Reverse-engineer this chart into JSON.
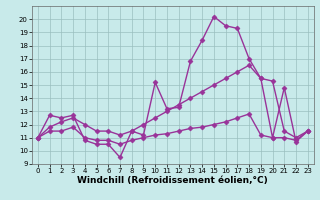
{
  "background_color": "#c8eaea",
  "line_color": "#993399",
  "marker": "D",
  "markersize": 2.5,
  "linewidth": 1.0,
  "xlabel": "Windchill (Refroidissement éolien,°C)",
  "xlabel_fontsize": 6.5,
  "xlabel_bold": true,
  "ylim": [
    9,
    21
  ],
  "xlim": [
    -0.5,
    23.5
  ],
  "yticks": [
    9,
    10,
    11,
    12,
    13,
    14,
    15,
    16,
    17,
    18,
    19,
    20
  ],
  "xticks": [
    0,
    1,
    2,
    3,
    4,
    5,
    6,
    7,
    8,
    9,
    10,
    11,
    12,
    13,
    14,
    15,
    16,
    17,
    18,
    19,
    20,
    21,
    22,
    23
  ],
  "grid_color": "#9bbfbf",
  "series": [
    {
      "x": [
        0,
        1,
        2,
        3,
        4,
        5,
        6,
        7,
        8,
        9,
        10,
        11,
        12,
        13,
        14,
        15,
        16,
        17,
        18,
        19,
        20,
        21,
        22,
        23
      ],
      "y": [
        11.0,
        12.7,
        12.5,
        12.7,
        10.8,
        10.5,
        10.5,
        9.5,
        11.5,
        11.2,
        15.2,
        13.2,
        13.3,
        16.8,
        18.4,
        20.2,
        19.5,
        19.3,
        17.0,
        15.5,
        11.0,
        14.8,
        10.7,
        11.5
      ]
    },
    {
      "x": [
        0,
        1,
        2,
        3,
        4,
        5,
        6,
        7,
        8,
        9,
        10,
        11,
        12,
        13,
        14,
        15,
        16,
        17,
        18,
        19,
        20,
        21,
        22,
        23
      ],
      "y": [
        11.0,
        11.8,
        12.2,
        12.5,
        12.0,
        11.5,
        11.5,
        11.2,
        11.5,
        12.0,
        12.5,
        13.0,
        13.5,
        14.0,
        14.5,
        15.0,
        15.5,
        16.0,
        16.5,
        15.5,
        15.3,
        11.5,
        11.0,
        11.5
      ]
    },
    {
      "x": [
        0,
        1,
        2,
        3,
        4,
        5,
        6,
        7,
        8,
        9,
        10,
        11,
        12,
        13,
        14,
        15,
        16,
        17,
        18,
        19,
        20,
        21,
        22,
        23
      ],
      "y": [
        11.0,
        11.5,
        11.5,
        11.8,
        11.0,
        10.8,
        10.8,
        10.5,
        10.8,
        11.0,
        11.2,
        11.3,
        11.5,
        11.7,
        11.8,
        12.0,
        12.2,
        12.5,
        12.8,
        11.2,
        11.0,
        11.0,
        10.8,
        11.5
      ]
    }
  ]
}
